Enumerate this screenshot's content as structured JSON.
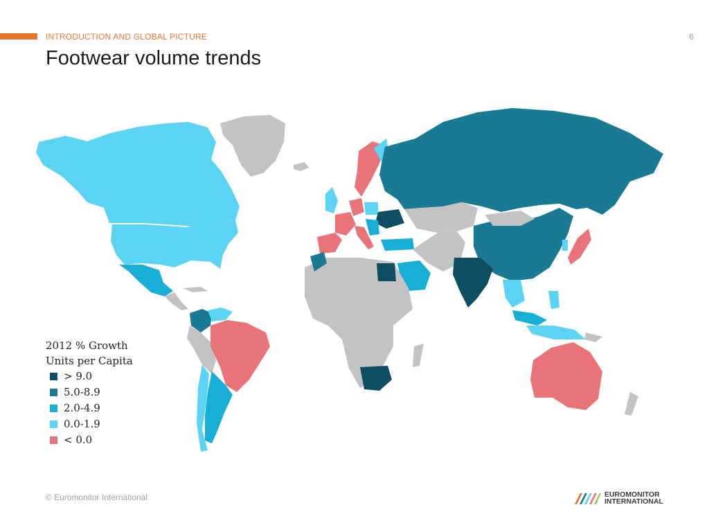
{
  "header": {
    "section_label": "INTRODUCTION AND GLOBAL PICTURE",
    "page_number": "6",
    "title": "Footwear volume trends"
  },
  "colors": {
    "accent": "#e8742a",
    "gt9": "#0f4d63",
    "r5to8_9": "#1b7a93",
    "r2to4_9": "#19aed6",
    "r0to1_9": "#5dd3f3",
    "lt0": "#e8747a",
    "no_data": "#c3c3c3"
  },
  "legend": {
    "title_line1": "2012 % Growth",
    "title_line2": "Units per Capita",
    "items": [
      {
        "label": "> 9.0",
        "color": "#0f4d63"
      },
      {
        "label": "5.0-8.9",
        "color": "#1b7a93"
      },
      {
        "label": "2.0-4.9",
        "color": "#19aed6"
      },
      {
        "label": "0.0-1.9",
        "color": "#5dd3f3"
      },
      {
        "label": "< 0.0",
        "color": "#e8747a"
      }
    ]
  },
  "footer": {
    "copyright": "© Euromonitor International",
    "brand_line1": "EUROMONITOR",
    "brand_line2": "INTERNATIONAL"
  }
}
